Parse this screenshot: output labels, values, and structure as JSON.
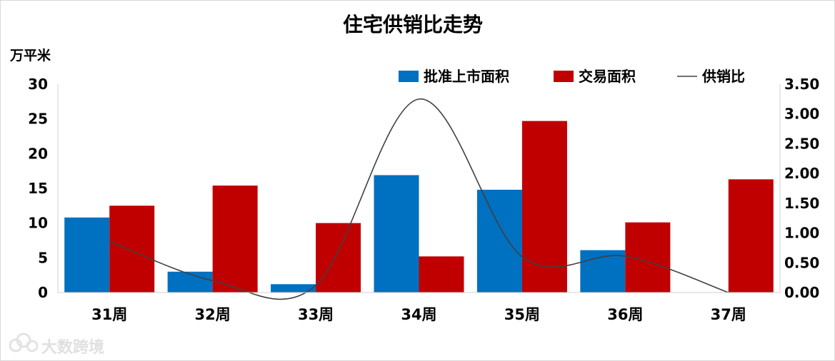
{
  "chart_data": {
    "type": "bar",
    "title": "住宅供销比走势",
    "ylabel": "万平米",
    "categories": [
      "31周",
      "32周",
      "33周",
      "34周",
      "35周",
      "36周",
      "37周"
    ],
    "series": [
      {
        "name": "批准上市面积",
        "type": "bar",
        "axis": "left",
        "values": [
          10.8,
          3.0,
          1.2,
          16.9,
          14.8,
          6.1,
          0
        ],
        "color": "#0070c0"
      },
      {
        "name": "交易面积",
        "type": "bar",
        "axis": "left",
        "values": [
          12.5,
          15.4,
          10.0,
          5.2,
          24.7,
          10.1,
          16.3
        ],
        "color": "#c00000"
      },
      {
        "name": "供销比",
        "type": "line",
        "axis": "right",
        "values": [
          0.86,
          0.2,
          0.12,
          3.25,
          0.6,
          0.61,
          0.0
        ],
        "color": "#404040"
      }
    ],
    "ylim": [
      0,
      30
    ],
    "yticks": [
      "0",
      "5",
      "10",
      "15",
      "20",
      "25",
      "30"
    ],
    "y2lim": [
      0,
      3.5
    ],
    "y2ticks": [
      "0.00",
      "0.50",
      "1.00",
      "1.50",
      "2.00",
      "2.50",
      "3.00",
      "3.50"
    ],
    "legend_position": "top-right",
    "grid": false
  },
  "watermark": {
    "text": "大数跨境",
    "logo_icon": "cloud-logo-icon"
  }
}
